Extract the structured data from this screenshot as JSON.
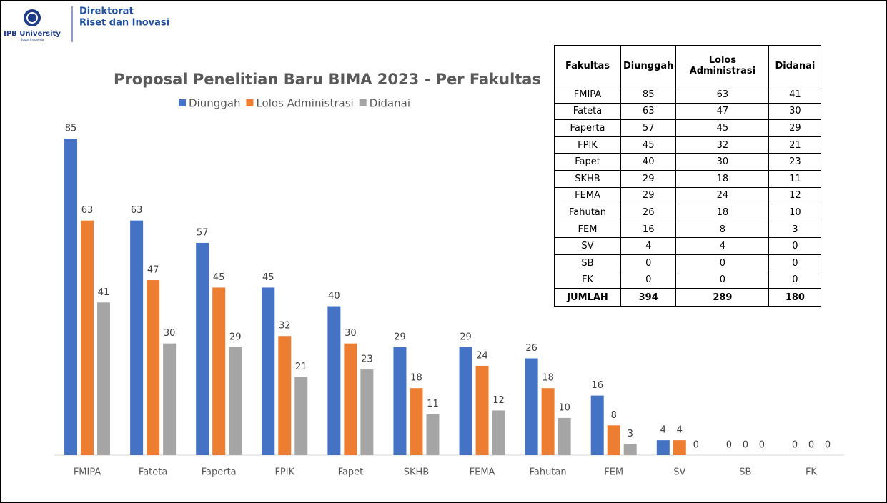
{
  "header": {
    "logo_name": "IPB University",
    "logo_sub": "Bogor Indonesia",
    "line1": "Direktorat",
    "line2": "Riset dan Inovasi"
  },
  "chart_data": {
    "type": "bar",
    "title": "Proposal Penelitian Baru BIMA 2023 - Per Fakultas",
    "categories": [
      "FMIPA",
      "Fateta",
      "Faperta",
      "FPIK",
      "Fapet",
      "SKHB",
      "FEMA",
      "Fahutan",
      "FEM",
      "SV",
      "SB",
      "FK"
    ],
    "series": [
      {
        "name": "Diunggah",
        "color": "#4472c4",
        "values": [
          85,
          63,
          57,
          45,
          40,
          29,
          29,
          26,
          16,
          4,
          0,
          0
        ]
      },
      {
        "name": "Lolos Administrasi",
        "color": "#ed7d31",
        "values": [
          63,
          47,
          45,
          32,
          30,
          18,
          24,
          18,
          8,
          4,
          0,
          0
        ]
      },
      {
        "name": "Didanai",
        "color": "#a5a5a5",
        "values": [
          41,
          30,
          29,
          21,
          23,
          11,
          12,
          10,
          3,
          0,
          0,
          0
        ]
      }
    ],
    "legend": "top"
  },
  "table": {
    "columns": [
      "Fakultas",
      "Diunggah",
      "Lolos Administrasi",
      "Didanai"
    ],
    "rows": [
      [
        "FMIPA",
        85,
        63,
        41
      ],
      [
        "Fateta",
        63,
        47,
        30
      ],
      [
        "Faperta",
        57,
        45,
        29
      ],
      [
        "FPIK",
        45,
        32,
        21
      ],
      [
        "Fapet",
        40,
        30,
        23
      ],
      [
        "SKHB",
        29,
        18,
        11
      ],
      [
        "FEMA",
        29,
        24,
        12
      ],
      [
        "Fahutan",
        26,
        18,
        10
      ],
      [
        "FEM",
        16,
        8,
        3
      ],
      [
        "SV",
        4,
        4,
        0
      ],
      [
        "SB",
        0,
        0,
        0
      ],
      [
        "FK",
        0,
        0,
        0
      ]
    ],
    "total": [
      "JUMLAH",
      394,
      289,
      180
    ]
  }
}
